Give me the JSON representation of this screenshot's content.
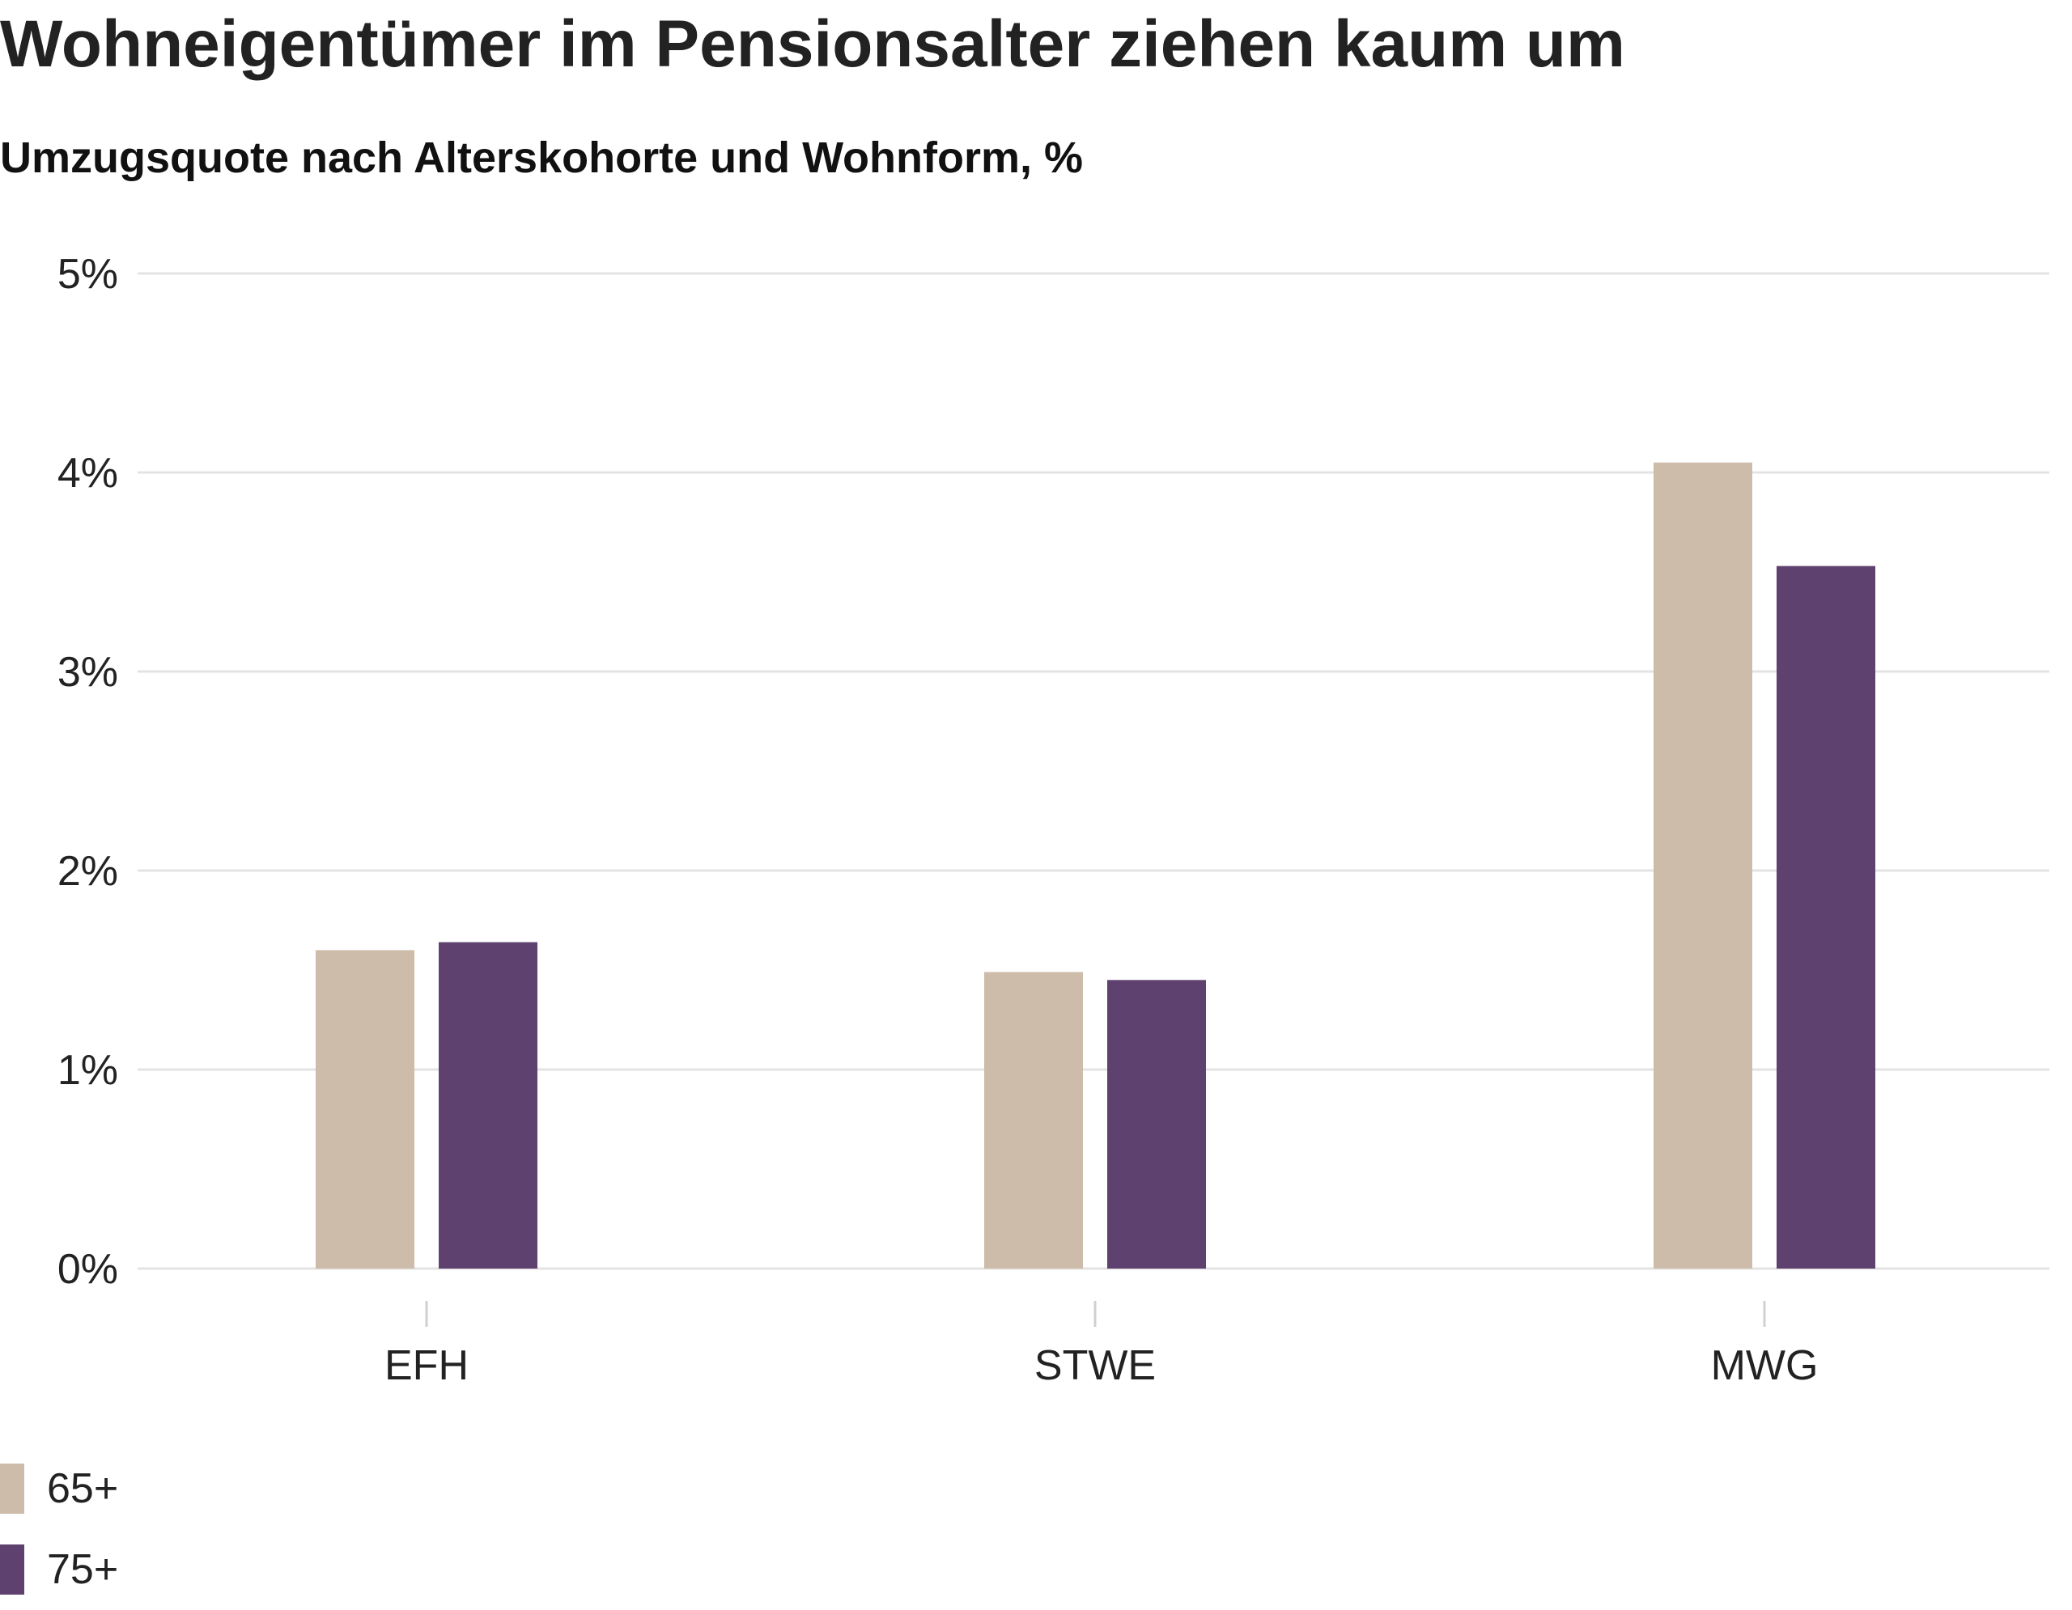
{
  "title": "Wohneigentümer im Pensionsalter ziehen kaum um",
  "subtitle": "Umzugsquote nach Alterskohorte und Wohnform, %",
  "colors": {
    "series_65": "#cdbca9",
    "series_75": "#5e416f",
    "grid": "#e3e3e3",
    "text": "#222222"
  },
  "chart_data": {
    "type": "bar",
    "title": "Wohneigentümer im Pensionsalter ziehen kaum um",
    "subtitle": "Umzugsquote nach Alterskohorte und Wohnform, %",
    "categories": [
      "EFH",
      "STWE",
      "MWG"
    ],
    "series": [
      {
        "name": "65+",
        "values": [
          1.6,
          1.49,
          4.05
        ]
      },
      {
        "name": "75+",
        "values": [
          1.64,
          1.45,
          3.53
        ]
      }
    ],
    "xlabel": "",
    "ylabel": "",
    "ylim": [
      0,
      5
    ],
    "yticks": [
      0,
      1,
      2,
      3,
      4,
      5
    ],
    "ytick_labels": [
      "0%",
      "1%",
      "2%",
      "3%",
      "4%",
      "5%"
    ],
    "grid": true,
    "legend": "bottom-left"
  }
}
